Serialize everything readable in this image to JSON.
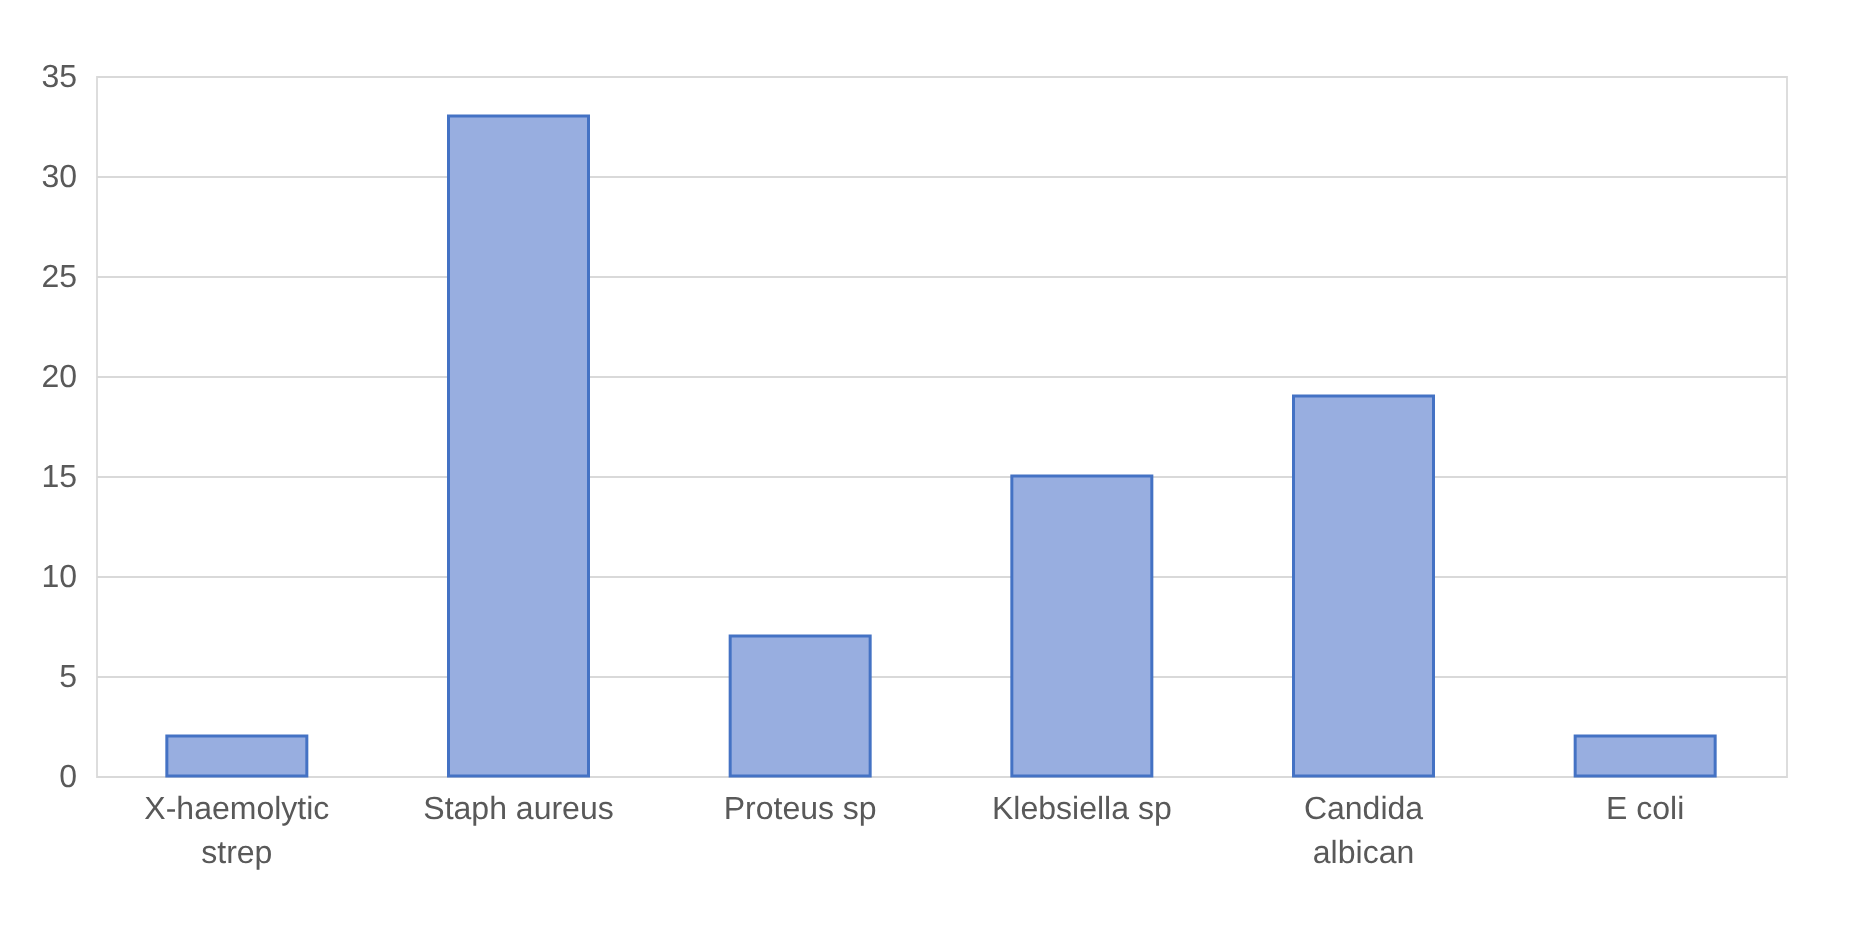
{
  "chart_data": {
    "type": "bar",
    "categories": [
      "X-haemolytic strep",
      "Staph aureus",
      "Proteus sp",
      "Klebsiella sp",
      "Candida albican",
      "E coli"
    ],
    "values": [
      2,
      33,
      7,
      15,
      19,
      2
    ],
    "color": "#98aee0",
    "ylim": [
      0,
      35
    ],
    "yticks": [
      0,
      5,
      10,
      15,
      20,
      25,
      30,
      35
    ],
    "grid": "y"
  }
}
